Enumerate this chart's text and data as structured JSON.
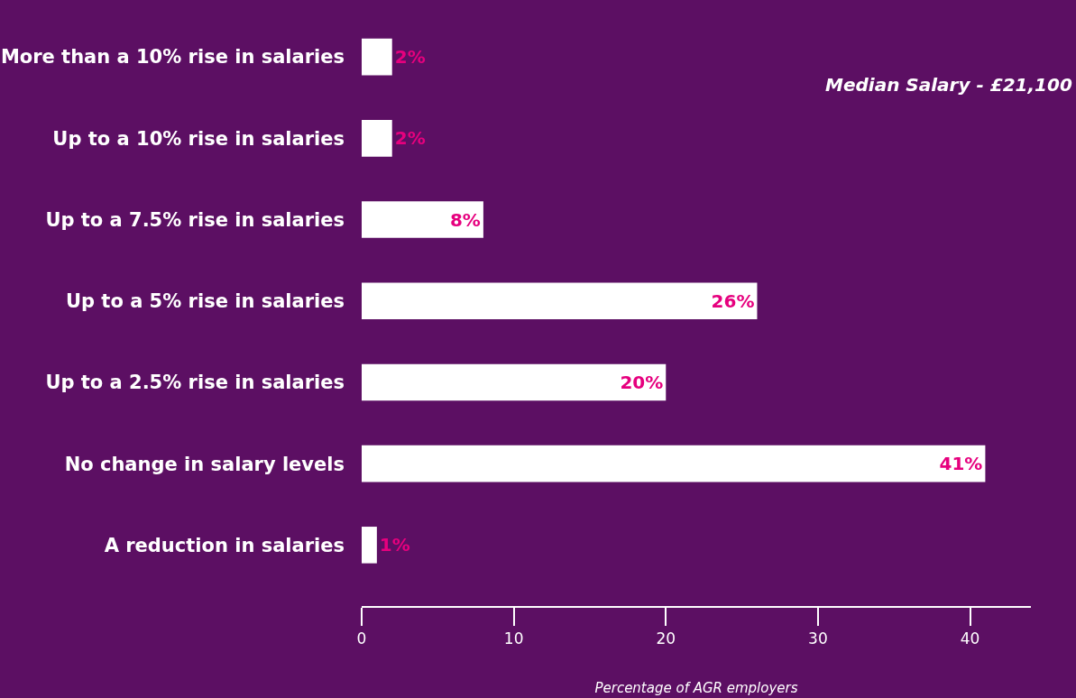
{
  "chart_data": {
    "type": "bar",
    "orientation": "horizontal",
    "xlabel": "Percentage of AGR employers",
    "categories": [
      "More than a 10% rise in salaries",
      "Up to a 10% rise in salaries",
      "Up to a 7.5% rise in salaries",
      "Up to a 5% rise in salaries",
      "Up to a 2.5% rise in salaries",
      "No change in salary levels",
      "A reduction in salaries"
    ],
    "values": [
      2,
      2,
      8,
      26,
      20,
      41,
      1
    ],
    "value_labels": [
      "2%",
      "2%",
      "8%",
      "26%",
      "20%",
      "41%",
      "1%"
    ],
    "color": "#ffffff",
    "xlim": [
      0,
      44
    ],
    "xticks": [
      0,
      10,
      20,
      30,
      40
    ],
    "grid": false,
    "annotations": [
      "Median Salary - £21,100"
    ]
  }
}
